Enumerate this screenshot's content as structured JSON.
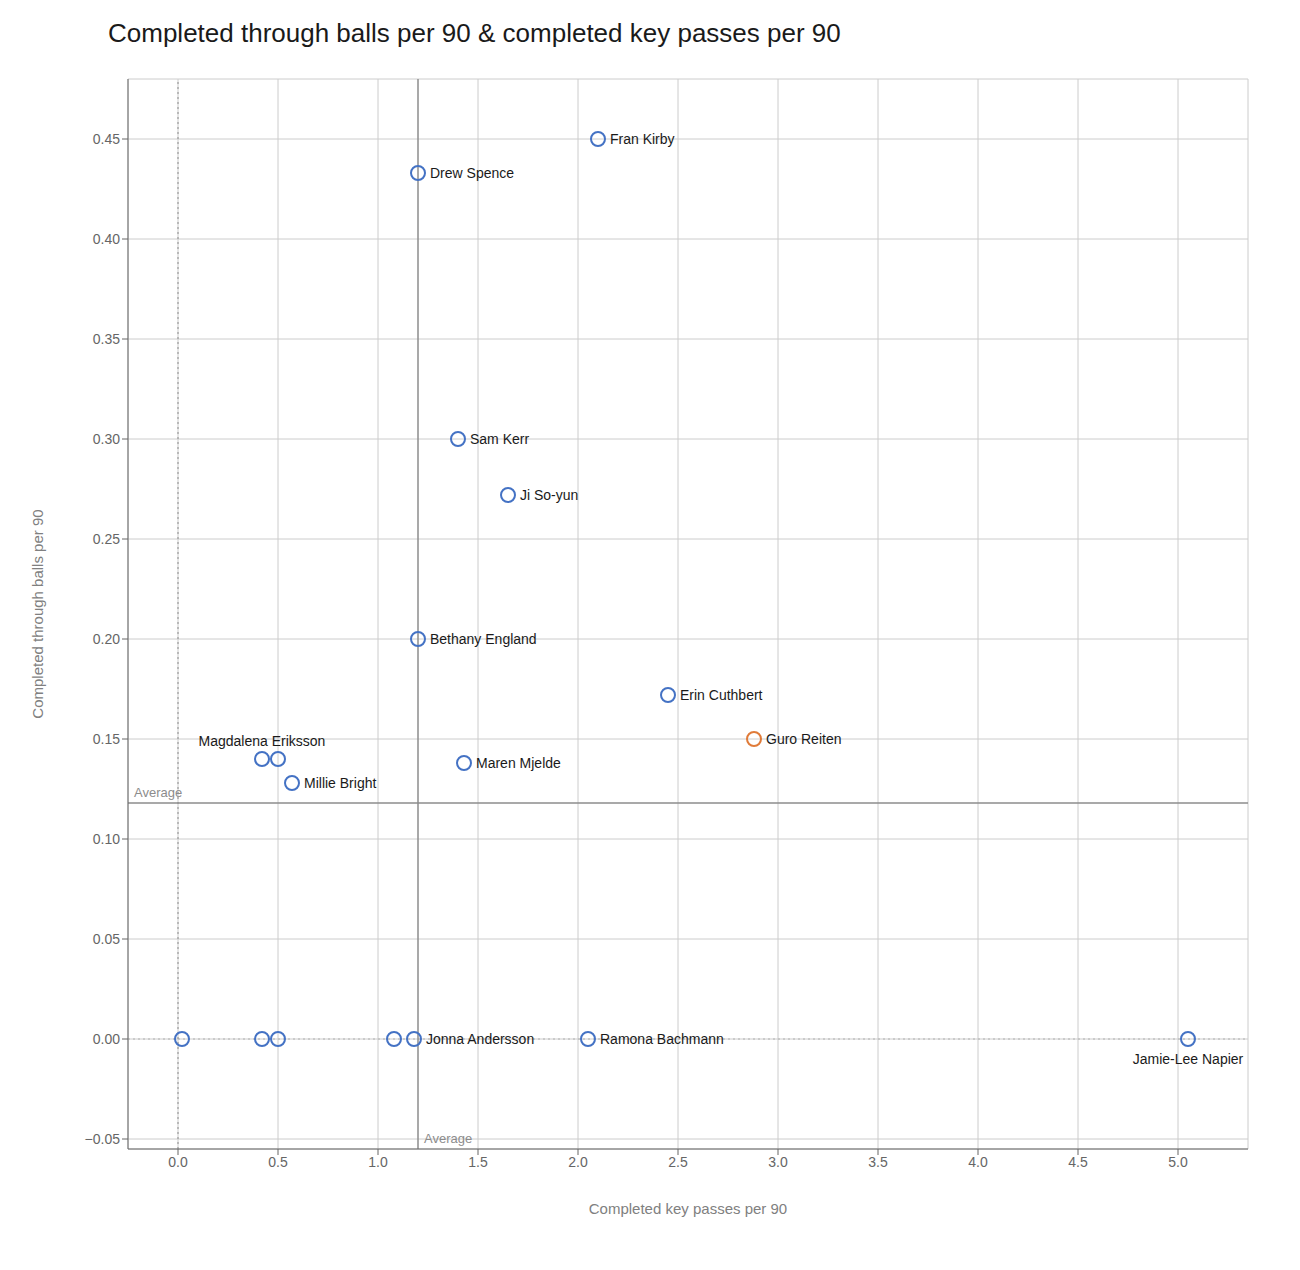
{
  "chart_data": {
    "type": "scatter",
    "title": "Completed through balls per 90 & completed key passes per 90",
    "x_label": "Completed key passes per 90",
    "y_label": "Completed through balls per 90",
    "xlim": [
      -0.25,
      5.35
    ],
    "ylim": [
      -0.055,
      0.48
    ],
    "xticks": [
      {
        "value": 0,
        "label": "0.0"
      },
      0.5,
      {
        "value": 1,
        "label": "1.0"
      },
      1.5,
      {
        "value": 2,
        "label": "2.0"
      },
      2.5,
      {
        "value": 3,
        "label": "3.0"
      },
      3.5,
      {
        "value": 4,
        "label": "4.0"
      },
      4.5,
      {
        "value": 5,
        "label": "5.0"
      }
    ],
    "yticks": [
      {
        "value": -0.05,
        "label": "−0.05"
      },
      {
        "value": 0,
        "label": "0.00"
      },
      0.05,
      {
        "value": 0.1,
        "label": "0.10"
      },
      0.15,
      {
        "value": 0.2,
        "label": "0.20"
      },
      0.25,
      {
        "value": 0.3,
        "label": "0.30"
      },
      0.35,
      {
        "value": 0.4,
        "label": "0.40"
      },
      0.45
    ],
    "grid": true,
    "marker": "hollow_circle",
    "x": [
      2.1,
      1.2,
      1.4,
      1.65,
      1.2,
      2.45,
      0.42,
      2.88,
      0.57,
      1.43,
      1.18,
      2.05,
      5.05,
      0.02,
      0.42,
      0.5,
      0.5,
      1.08
    ],
    "values": [
      0.45,
      0.433,
      0.3,
      0.272,
      0.2,
      0.172,
      0.14,
      0.15,
      0.128,
      0.138,
      0.0,
      0.0,
      0.0,
      0.0,
      0.0,
      0.0,
      0.14,
      0.0
    ],
    "colors": [
      "#4472c4",
      "#4472c4",
      "#4472c4",
      "#4472c4",
      "#4472c4",
      "#4472c4",
      "#4472c4",
      "#e07b39",
      "#4472c4",
      "#4472c4",
      "#4472c4",
      "#4472c4",
      "#4472c4",
      "#4472c4",
      "#4472c4",
      "#4472c4",
      "#4472c4",
      "#4472c4"
    ],
    "annotations": [
      {
        "text": "Fran Kirby",
        "x": 2.1,
        "y": 0.45
      },
      {
        "text": "Drew Spence",
        "x": 1.2,
        "y": 0.433
      },
      {
        "text": "Sam Kerr",
        "x": 1.4,
        "y": 0.3
      },
      {
        "text": "Ji So-yun",
        "x": 1.65,
        "y": 0.272
      },
      {
        "text": "Bethany England",
        "x": 1.2,
        "y": 0.2
      },
      {
        "text": "Erin Cuthbert",
        "x": 2.45,
        "y": 0.172
      },
      {
        "text": "Magdalena Eriksson",
        "x": 0.42,
        "y": 0.14
      },
      {
        "text": "Guro Reiten",
        "x": 2.88,
        "y": 0.15
      },
      {
        "text": "Millie Bright",
        "x": 0.57,
        "y": 0.128
      },
      {
        "text": "Maren Mjelde",
        "x": 1.43,
        "y": 0.138
      },
      {
        "text": "Jonna Andersson",
        "x": 1.18,
        "y": 0.0
      },
      {
        "text": "Ramona Bachmann",
        "x": 2.05,
        "y": 0.0
      },
      {
        "text": "Jamie-Lee Napier",
        "x": 5.05,
        "y": 0.0
      }
    ],
    "reference_lines": [
      {
        "axis": "y",
        "value": 0.0,
        "line_style": "dotted",
        "color": "#b0b0b0"
      },
      {
        "axis": "x",
        "value": 1.2,
        "line_style": "solid",
        "color": "#8c8c8c",
        "label": "Average"
      },
      {
        "axis": "y",
        "value": 0.118,
        "line_style": "solid",
        "color": "#8c8c8c",
        "label": "Average"
      },
      {
        "axis": "x",
        "value": 0.0,
        "line_style": "dotted",
        "color": "#8c8c8c"
      }
    ]
  }
}
